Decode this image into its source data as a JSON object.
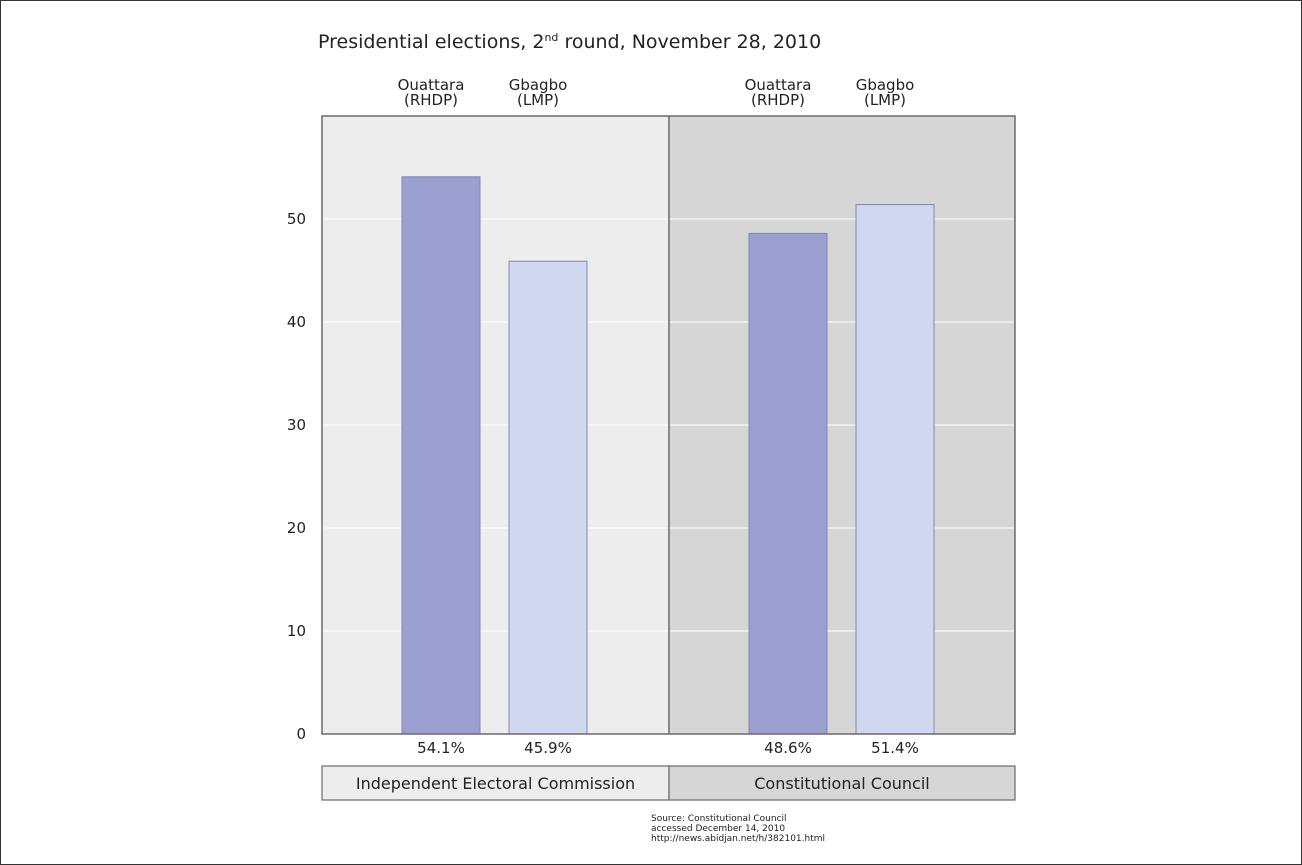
{
  "chart_data": {
    "type": "bar",
    "title": {
      "main_before": "Presidential elections, 2",
      "superscript": "nd",
      "main_after": " round, November 28, 2010"
    },
    "ylim": [
      0,
      60
    ],
    "yticks": [
      0,
      10,
      20,
      30,
      40,
      50
    ],
    "grid": true,
    "groups": [
      {
        "name": "Independent Electoral Commission",
        "background": "#ededed",
        "bars": [
          {
            "line1": "Ouattara",
            "line2": "(RHDP)",
            "value": 54.1,
            "label": "54.1%",
            "color": "#9a9fd0"
          },
          {
            "line1": "Gbagbo",
            "line2": "(LMP)",
            "value": 45.9,
            "label": "45.9%",
            "color": "#cfd8ee"
          }
        ]
      },
      {
        "name": "Constitutional Council",
        "background": "#d6d6d6",
        "bars": [
          {
            "line1": "Ouattara",
            "line2": "(RHDP)",
            "value": 48.6,
            "label": "48.6%",
            "color": "#9a9fd0"
          },
          {
            "line1": "Gbagbo",
            "line2": "(LMP)",
            "value": 51.4,
            "label": "51.4%",
            "color": "#cfd8ee"
          }
        ]
      }
    ],
    "source": [
      "Source: Constitutional Council",
      "accessed December 14, 2010",
      "http://news.abidjan.net/h/382101.html"
    ]
  }
}
